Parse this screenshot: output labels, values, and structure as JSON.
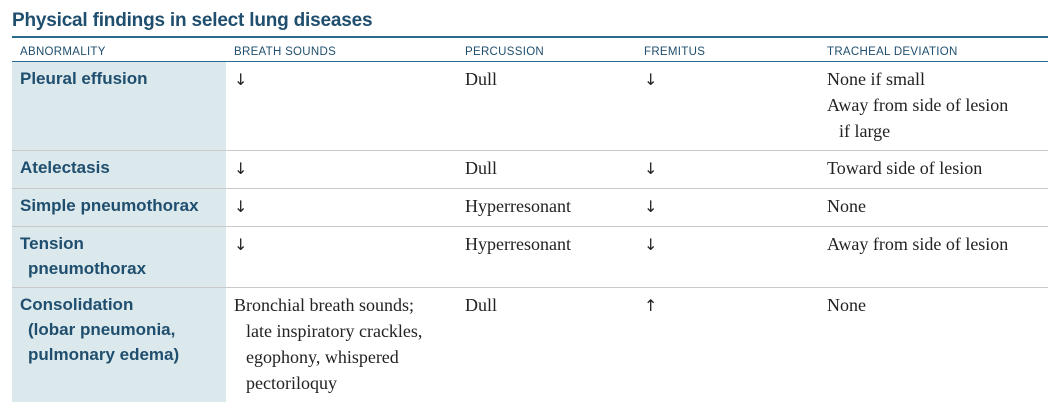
{
  "title": "Physical findings in select lung diseases",
  "headers": [
    "ABNORMALITY",
    "BREATH SOUNDS",
    "PERCUSSION",
    "FREMITUS",
    "TRACHEAL DEVIATION"
  ],
  "arrows": {
    "down": "↓",
    "up": "↑"
  },
  "rows": [
    {
      "abnormality": [
        "Pleural effusion"
      ],
      "breath_sounds": [
        "↓"
      ],
      "percussion": "Dull",
      "fremitus": "↓",
      "tracheal": [
        "None if small",
        "Away from side of lesion",
        "if large"
      ]
    },
    {
      "abnormality": [
        "Atelectasis"
      ],
      "breath_sounds": [
        "↓"
      ],
      "percussion": "Dull",
      "fremitus": "↓",
      "tracheal": [
        "Toward side of lesion"
      ]
    },
    {
      "abnormality": [
        "Simple pneumothorax"
      ],
      "breath_sounds": [
        "↓"
      ],
      "percussion": "Hyperresonant",
      "fremitus": "↓",
      "tracheal": [
        "None"
      ]
    },
    {
      "abnormality": [
        "Tension",
        "pneumothorax"
      ],
      "breath_sounds": [
        "↓"
      ],
      "percussion": "Hyperresonant",
      "fremitus": "↓",
      "tracheal": [
        "Away from side of lesion"
      ]
    },
    {
      "abnormality": [
        "Consolidation",
        "(lobar pneumonia,",
        "pulmonary edema)"
      ],
      "breath_sounds": [
        "Bronchial breath sounds;",
        "late inspiratory crackles,",
        "egophony, whispered",
        "pectoriloquy"
      ],
      "percussion": "Dull",
      "fremitus": "↑",
      "tracheal": [
        "None"
      ]
    }
  ]
}
